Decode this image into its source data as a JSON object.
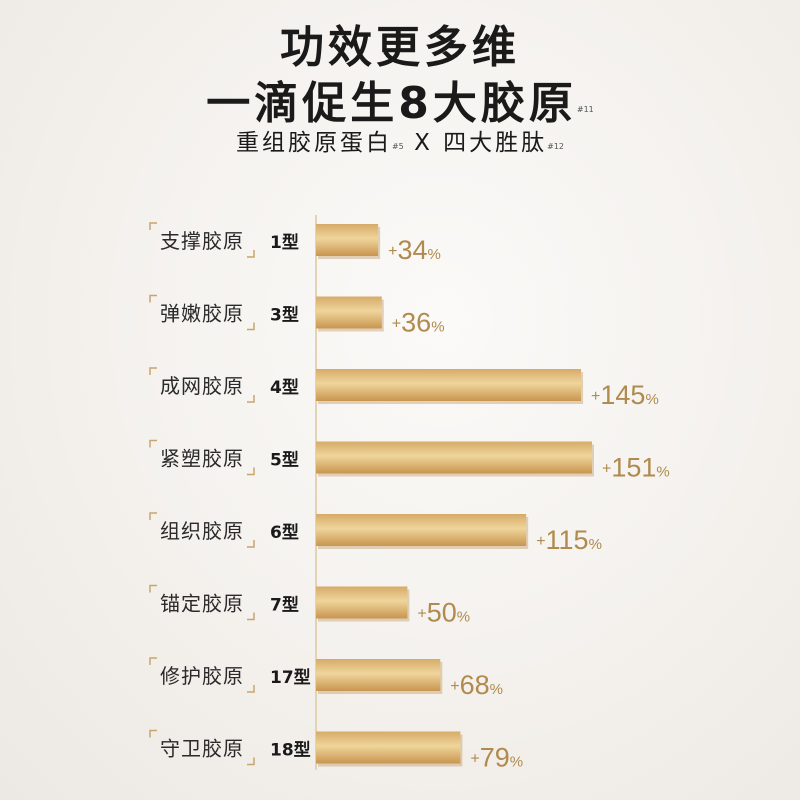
{
  "header": {
    "title_line1": "功效更多维",
    "title_line2": "一滴促生8大胶原",
    "title_line2_note": "#11",
    "subtitle_part1": "重组胶原蛋白",
    "subtitle_note1": "#5",
    "subtitle_x": "X",
    "subtitle_part2": "四大胜肽",
    "subtitle_note2": "#12"
  },
  "colors": {
    "bar_gradient": [
      "#d6ab68",
      "#efd59c",
      "#c8954f"
    ],
    "label_bracket": "#c9a56d",
    "value_text": "#b08a4e",
    "axis": "#e2d3b5"
  },
  "chart_data": {
    "type": "bar",
    "orientation": "horizontal",
    "categories": [
      {
        "name": "支撑胶原",
        "type": "1型"
      },
      {
        "name": "弹嫩胶原",
        "type": "3型"
      },
      {
        "name": "成网胶原",
        "type": "4型"
      },
      {
        "name": "紧塑胶原",
        "type": "5型"
      },
      {
        "name": "组织胶原",
        "type": "6型"
      },
      {
        "name": "锚定胶原",
        "type": "7型"
      },
      {
        "name": "修护胶原",
        "type": "17型"
      },
      {
        "name": "守卫胶原",
        "type": "18型"
      }
    ],
    "values": [
      34,
      36,
      145,
      151,
      115,
      50,
      68,
      79
    ],
    "value_labels": [
      "+34%",
      "+36%",
      "+145%",
      "+151%",
      "+115%",
      "+50%",
      "+68%",
      "+79%"
    ],
    "unit": "%",
    "xlim": [
      0,
      151
    ]
  }
}
